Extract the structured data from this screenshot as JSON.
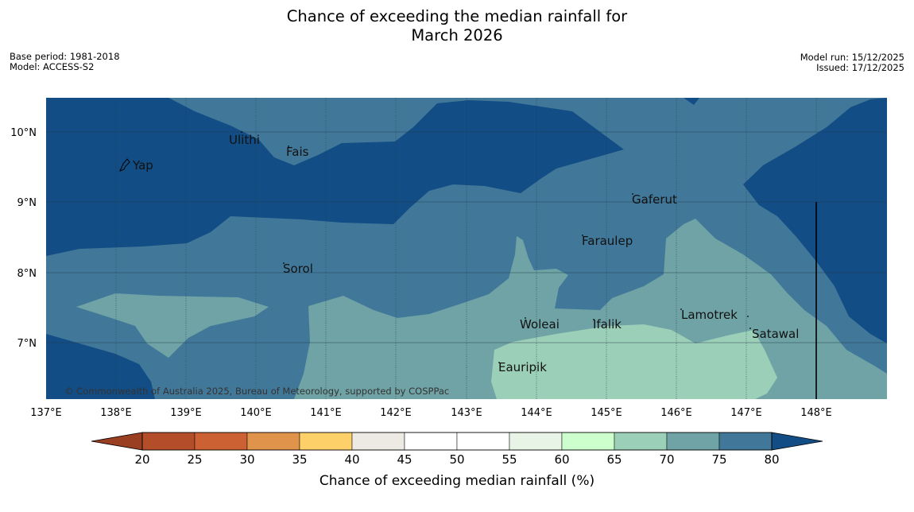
{
  "title": {
    "line1": "Chance of exceeding the median rainfall for",
    "line2": "March 2026"
  },
  "meta_left": {
    "base_period": "Base period: 1981-2018",
    "model": "Model: ACCESS-S2"
  },
  "meta_right": {
    "model_run": "Model run: 15/12/2025",
    "issued": "Issued: 17/12/2025"
  },
  "map": {
    "lat_labels": [
      "10°N",
      "9°N",
      "8°N",
      "7°N"
    ],
    "lon_labels": [
      "137°E",
      "138°E",
      "139°E",
      "140°E",
      "141°E",
      "142°E",
      "143°E",
      "144°E",
      "145°E",
      "146°E",
      "147°E",
      "148°E"
    ],
    "places": {
      "ulithi": "Ulithi",
      "fais": "Fais",
      "yap": "Yap",
      "gaferut": "Gaferut",
      "faraulep": "Faraulep",
      "sorol": "Sorol",
      "lamotrek": "Lamotrek",
      "woleai": "Woleai",
      "ifalik": "Ifalik",
      "satawal": "Satawal",
      "eauripik": "Eauripik"
    },
    "copyright": "© Commonwealth of Australia 2025, Bureau of Meteorology, supported by COSPPac"
  },
  "colorbar": {
    "labels": [
      "20",
      "25",
      "30",
      "35",
      "40",
      "45",
      "50",
      "55",
      "60",
      "65",
      "70",
      "75",
      "80"
    ],
    "colors": [
      "#b34d2a",
      "#cc6233",
      "#e0934a",
      "#fdd06a",
      "#ede9e3",
      "#ffffff",
      "#ffffff",
      "#e8f4e6",
      "#ccffcc",
      "#9ccfb8",
      "#6fa3a5",
      "#417899"
    ],
    "under_color": "#9b3f22",
    "over_color": "#134d85",
    "title": "Chance of exceeding median rainfall (%)"
  }
}
